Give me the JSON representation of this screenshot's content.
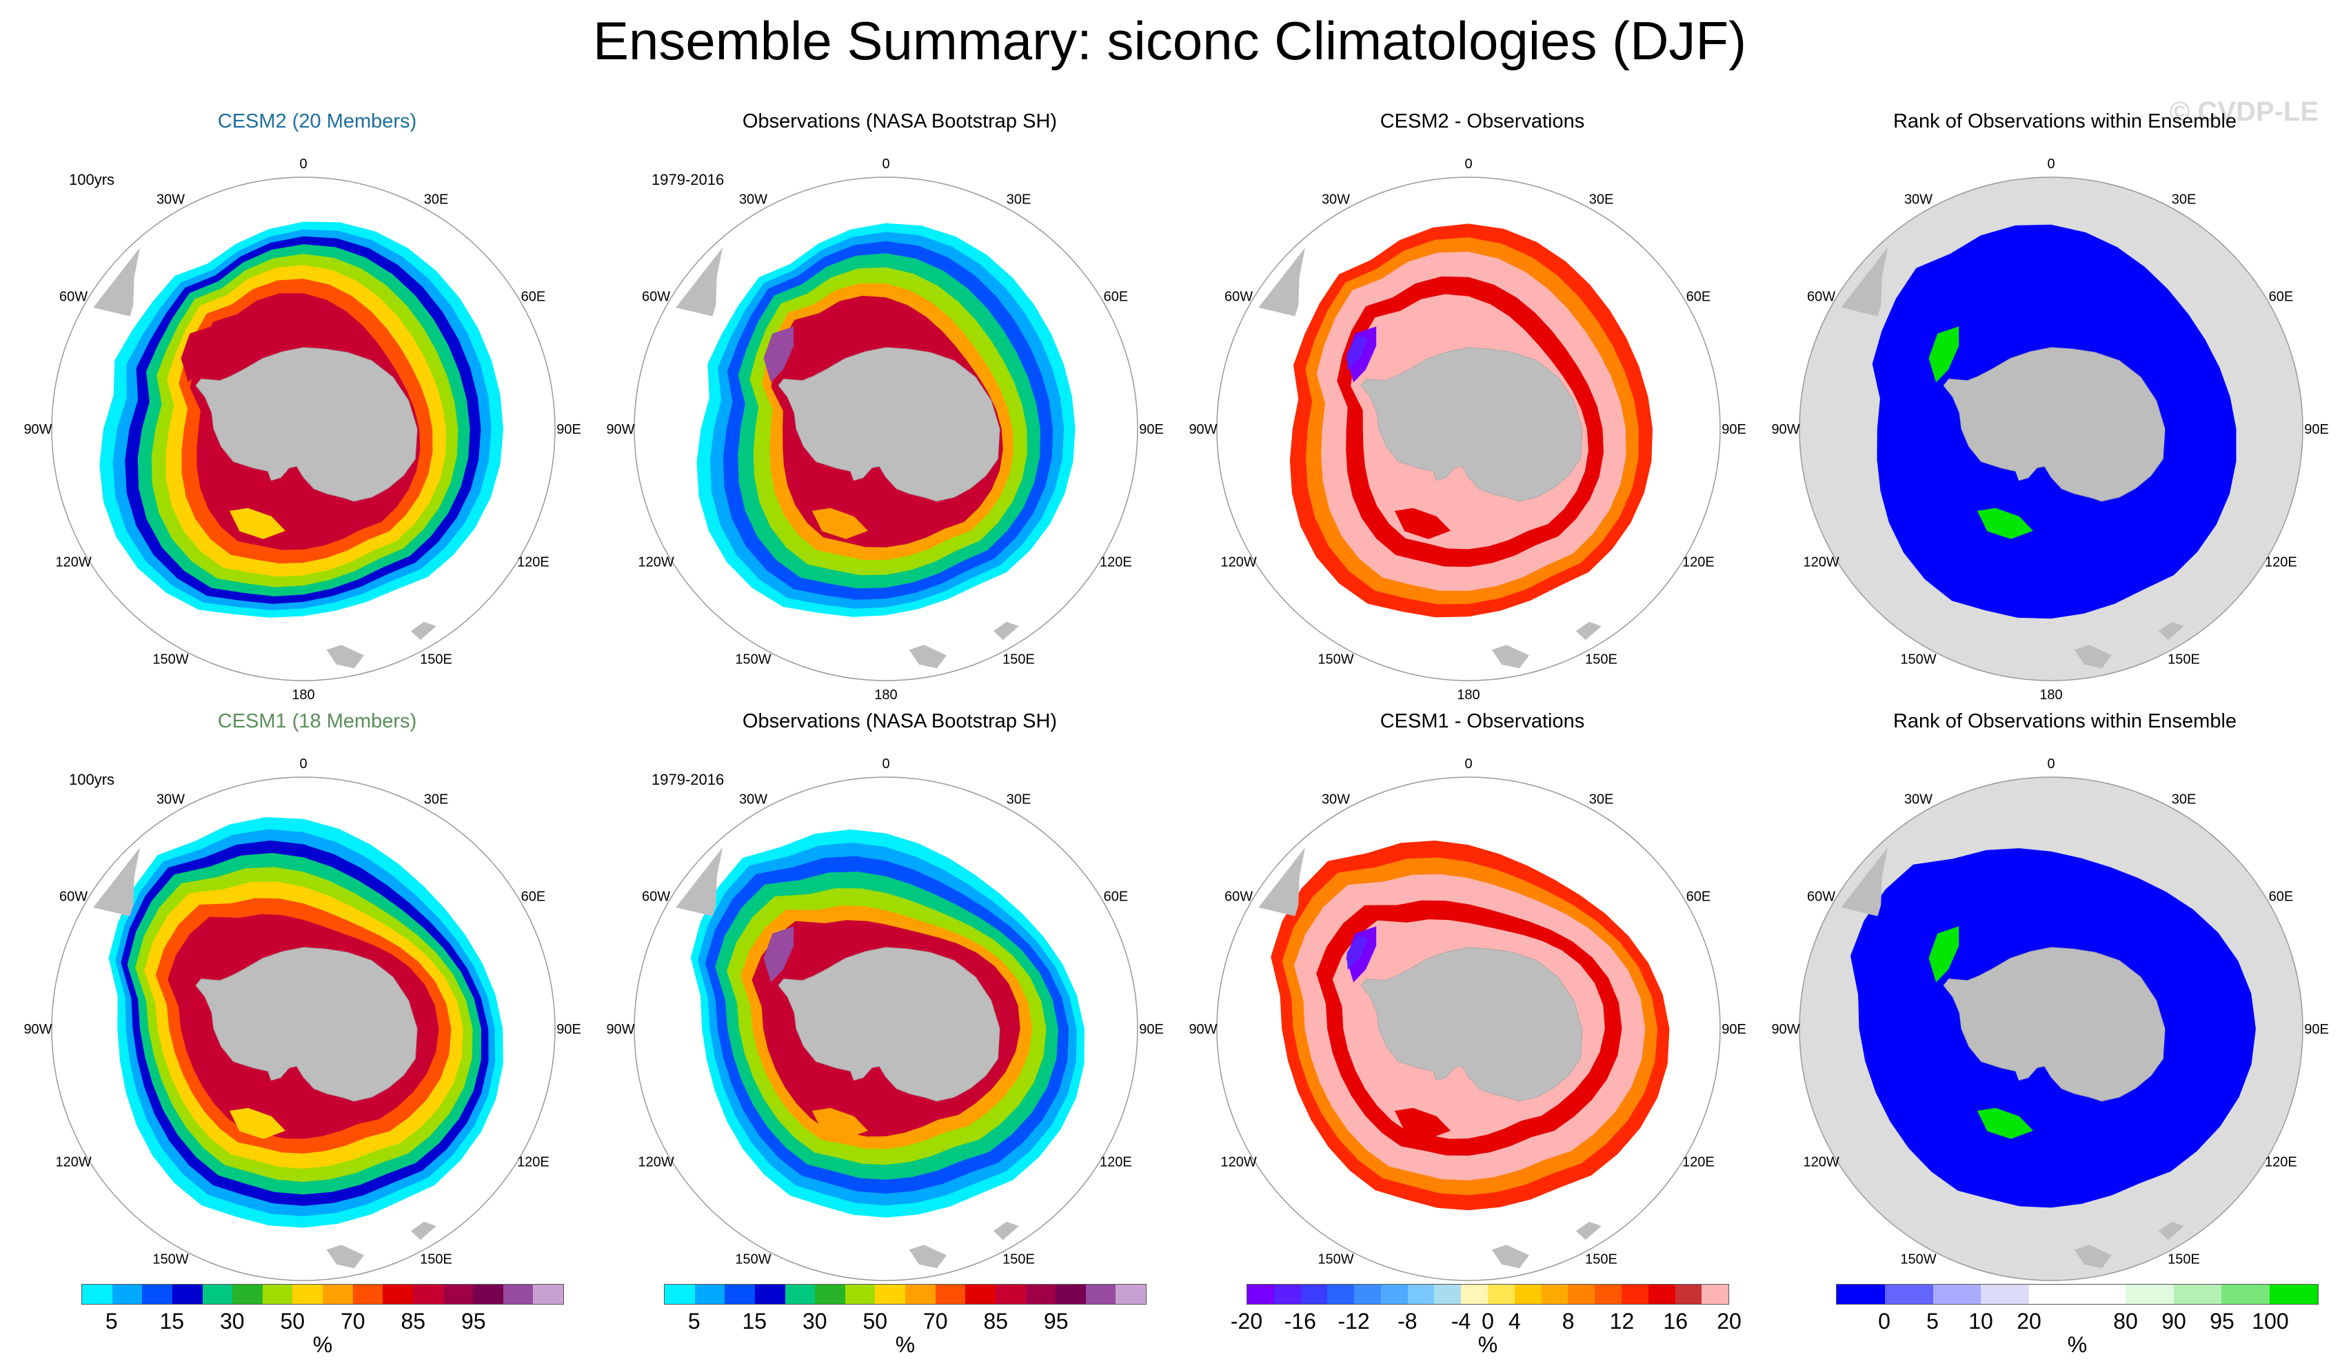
{
  "title": "Ensemble Summary: siconc Climatologies (DJF)",
  "watermark": "© CVDP-LE",
  "lon_labels": [
    "0",
    "30E",
    "60E",
    "90E",
    "120E",
    "150E",
    "180",
    "150W",
    "120W",
    "90W",
    "60W",
    "30W"
  ],
  "colors": {
    "land": "#bdbdbd",
    "ocean_rank": "#dcdcdc",
    "circle": "#999999"
  },
  "panels": [
    {
      "id": "cesm2-clim",
      "title": "CESM2 (20 Members)",
      "title_style": "cesm2",
      "period": "100yrs",
      "kind": "clim",
      "model": "cesm2"
    },
    {
      "id": "obs-clim-1",
      "title": "Observations (NASA Bootstrap SH)",
      "title_style": "",
      "period": "1979-2016",
      "kind": "obs",
      "model": "cesm2"
    },
    {
      "id": "cesm2-diff",
      "title": "CESM2 - Observations",
      "title_style": "",
      "period": "",
      "kind": "diff",
      "model": "cesm2"
    },
    {
      "id": "cesm2-rank",
      "title": "Rank of Observations within Ensemble",
      "title_style": "",
      "period": "",
      "kind": "rank",
      "model": "cesm2"
    },
    {
      "id": "cesm1-clim",
      "title": "CESM1 (18 Members)",
      "title_style": "cesm1",
      "period": "100yrs",
      "kind": "clim",
      "model": "cesm1"
    },
    {
      "id": "obs-clim-2",
      "title": "Observations (NASA Bootstrap SH)",
      "title_style": "",
      "period": "1979-2016",
      "kind": "obs",
      "model": "cesm1"
    },
    {
      "id": "cesm1-diff",
      "title": "CESM1 - Observations",
      "title_style": "",
      "period": "",
      "kind": "diff",
      "model": "cesm1"
    },
    {
      "id": "cesm1-rank",
      "title": "Rank of Observations within Ensemble",
      "title_style": "",
      "period": "",
      "kind": "rank",
      "model": "cesm1"
    }
  ],
  "colorbars": [
    {
      "id": "cbar-clim",
      "unit": "%",
      "colors": [
        "#00f0ff",
        "#00a8ff",
        "#0050ff",
        "#0000d0",
        "#00c880",
        "#28b428",
        "#a0dc00",
        "#ffd200",
        "#ffa000",
        "#ff5000",
        "#e00000",
        "#c80032",
        "#a00046",
        "#780050",
        "#964ba0",
        "#c8a0d2"
      ],
      "ticks": [
        "5",
        "15",
        "30",
        "50",
        "70",
        "85",
        "95"
      ],
      "tick_index": [
        1,
        3,
        5,
        7,
        9,
        11,
        13
      ]
    },
    {
      "id": "cbar-clim-2",
      "unit": "%",
      "colors": [
        "#00f0ff",
        "#00a8ff",
        "#0050ff",
        "#0000d0",
        "#00c880",
        "#28b428",
        "#a0dc00",
        "#ffd200",
        "#ffa000",
        "#ff5000",
        "#e00000",
        "#c80032",
        "#a00046",
        "#780050",
        "#964ba0",
        "#c8a0d2"
      ],
      "ticks": [
        "5",
        "15",
        "30",
        "50",
        "70",
        "85",
        "95"
      ],
      "tick_index": [
        1,
        3,
        5,
        7,
        9,
        11,
        13
      ]
    },
    {
      "id": "cbar-diff",
      "unit": "%",
      "colors": [
        "#7800ff",
        "#5a1eff",
        "#3c3cff",
        "#2864ff",
        "#3c8cff",
        "#50aaff",
        "#78c8ff",
        "#aadcf0",
        "#fff5b4",
        "#ffe650",
        "#ffc800",
        "#ffaa00",
        "#ff8200",
        "#ff5a00",
        "#ff2800",
        "#e60000",
        "#c83232",
        "#ffb4b4"
      ],
      "ticks": [
        "-20",
        "-16",
        "-12",
        "-8",
        "-4",
        "0",
        "4",
        "8",
        "12",
        "16",
        "20"
      ],
      "tick_index": [
        0,
        2,
        4,
        6,
        8,
        9,
        10,
        12,
        14,
        16,
        18
      ]
    },
    {
      "id": "cbar-rank",
      "unit": "%",
      "colors": [
        "#0000ff",
        "#6464ff",
        "#aaaaff",
        "#dcdcf8",
        "#ffffff",
        "#ffffff",
        "#e0fae0",
        "#b4f0b4",
        "#78e678",
        "#00e600"
      ],
      "ticks": [
        "0",
        "5",
        "10",
        "20",
        "80",
        "90",
        "95",
        "100"
      ],
      "tick_index": [
        1,
        2,
        3,
        4,
        6,
        7,
        8,
        9
      ]
    }
  ]
}
